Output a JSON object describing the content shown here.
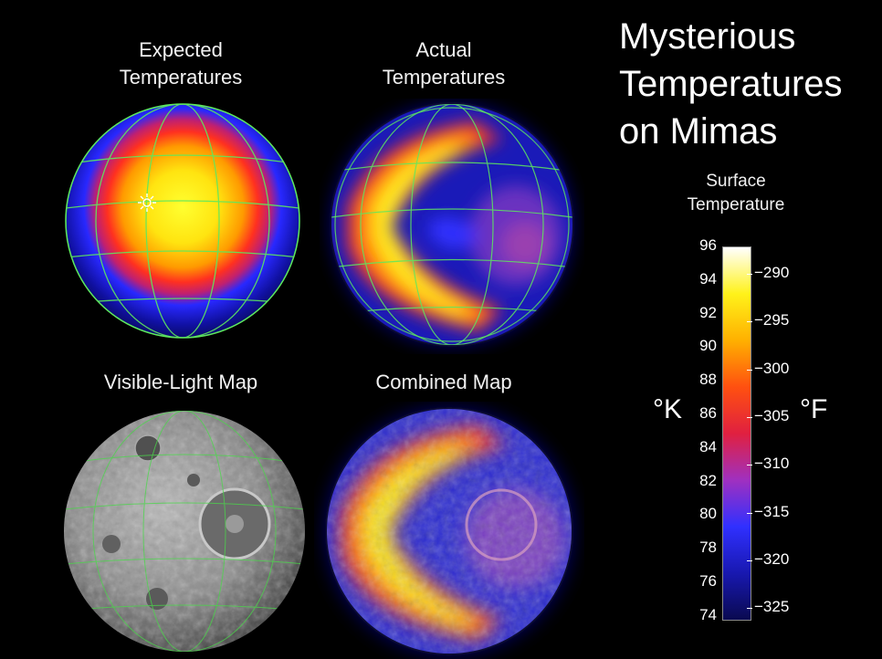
{
  "title_lines": [
    "Mysterious",
    "Temperatures",
    "on Mimas"
  ],
  "panels": {
    "expected": {
      "line1": "Expected",
      "line2": "Temperatures"
    },
    "actual": {
      "line1": "Actual",
      "line2": "Temperatures"
    },
    "visible": {
      "label": "Visible-Light Map"
    },
    "combined": {
      "label": "Combined Map"
    }
  },
  "scale": {
    "title_line1": "Surface",
    "title_line2": "Temperature",
    "unit_left": "°K",
    "unit_right": "°F",
    "kelvin_ticks": [
      "96",
      "94",
      "92",
      "90",
      "88",
      "86",
      "84",
      "82",
      "80",
      "78",
      "76",
      "74"
    ],
    "fahrenheit_ticks": [
      "−290",
      "−295",
      "−300",
      "−305",
      "−310",
      "−315",
      "−320",
      "−325"
    ],
    "colors": [
      "#ffffff",
      "#fff21a",
      "#ffb000",
      "#ff5010",
      "#e02040",
      "#a030c0",
      "#3030ff",
      "#1818b0",
      "#0a0a50"
    ]
  }
}
